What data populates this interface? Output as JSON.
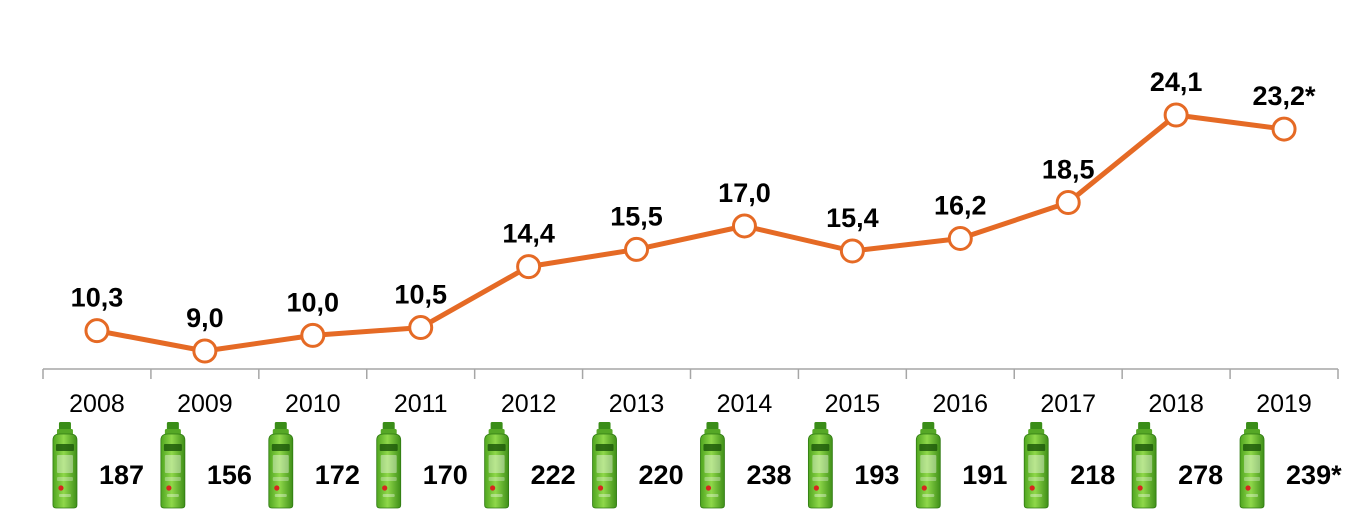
{
  "chart_data": {
    "type": "line",
    "categories": [
      "2008",
      "2009",
      "2010",
      "2011",
      "2012",
      "2013",
      "2014",
      "2015",
      "2016",
      "2017",
      "2018",
      "2019"
    ],
    "values": [
      10.3,
      9.0,
      10.0,
      10.5,
      14.4,
      15.5,
      17.0,
      15.4,
      16.2,
      18.5,
      24.1,
      23.2
    ],
    "value_labels": [
      "10,3",
      "9,0",
      "10,0",
      "10,5",
      "14,4",
      "15,5",
      "17,0",
      "15,4",
      "16,2",
      "18,5",
      "24,1",
      "23,2*"
    ],
    "secondary_values": [
      187,
      156,
      172,
      170,
      222,
      220,
      238,
      193,
      191,
      218,
      278,
      239
    ],
    "secondary_labels": [
      "187",
      "156",
      "172",
      "170",
      "222",
      "220",
      "238",
      "193",
      "191",
      "218",
      "278",
      "239*"
    ],
    "product_icon": "green-mouthwash-bottle-icon",
    "line_color": "#E56A25",
    "marker_fill": "#ffffff",
    "grid": false,
    "legend": "none",
    "title": "",
    "xlabel": "",
    "ylabel": ""
  }
}
